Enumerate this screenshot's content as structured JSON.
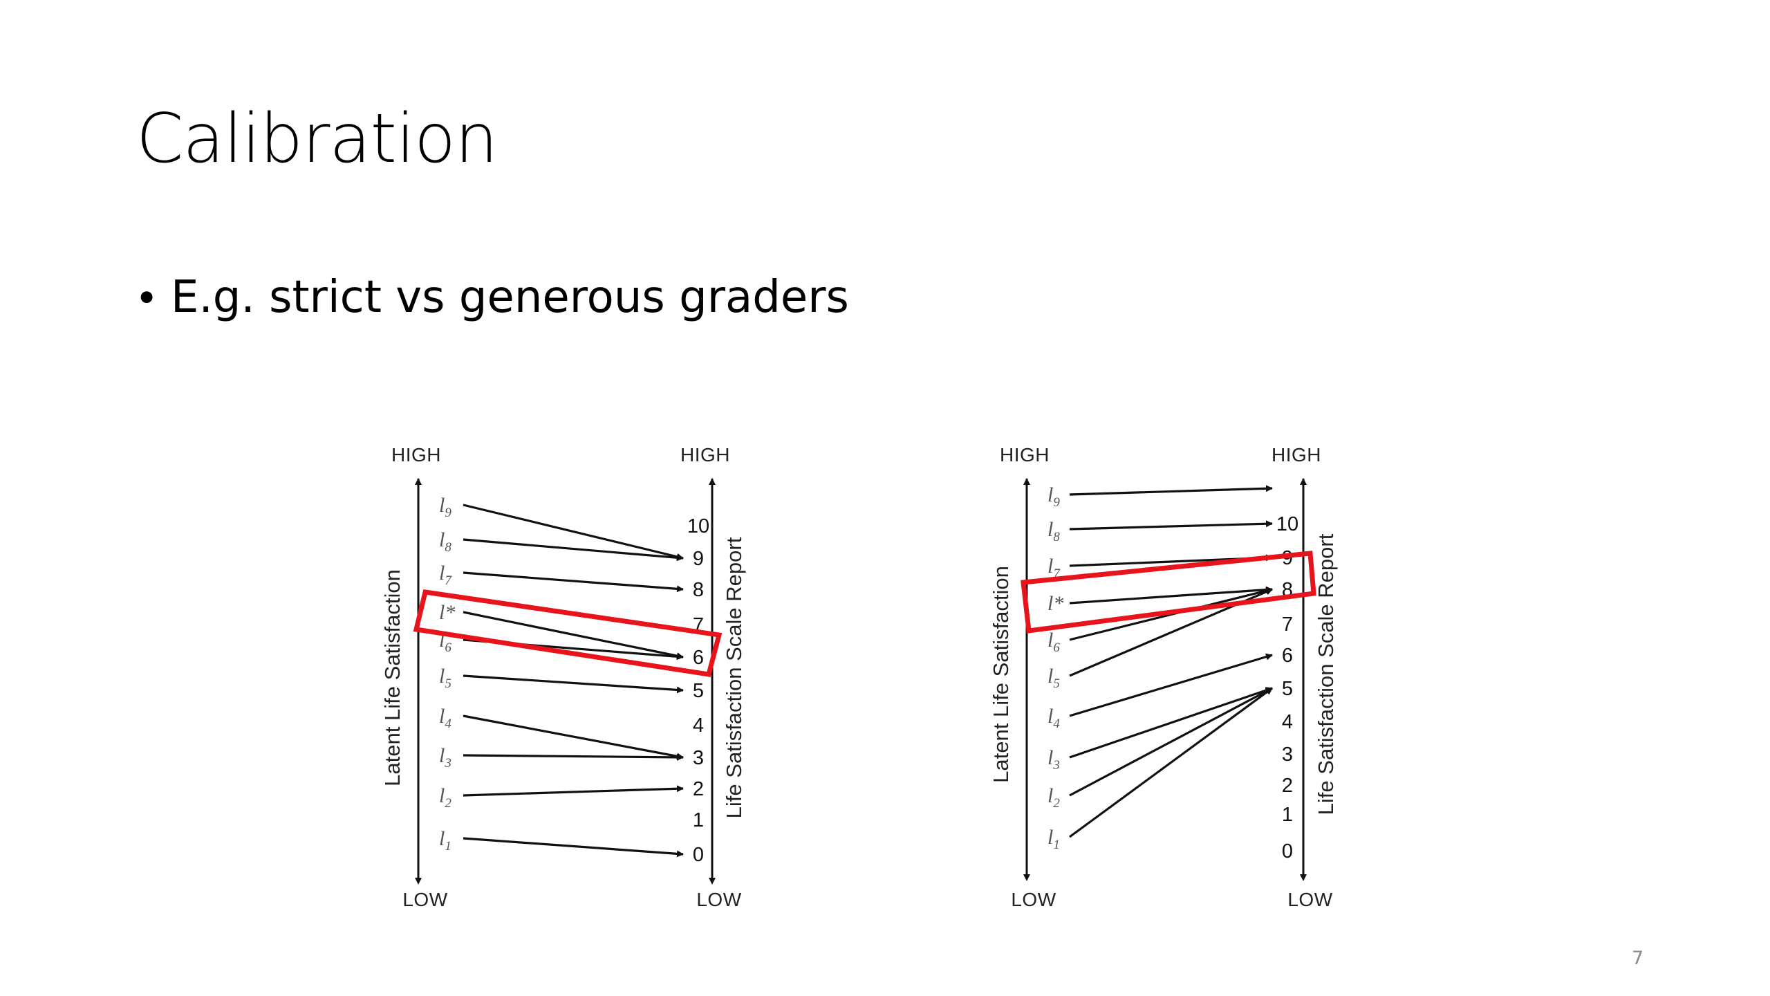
{
  "slide": {
    "title": "Calibration",
    "bullets": [
      "E.g. strict vs generous graders"
    ],
    "page_number": "7"
  },
  "diagrams": [
    {
      "id": "strict",
      "left_axis": {
        "top": "HIGH",
        "bottom": "LOW",
        "label": "Latent Life Satisfaction"
      },
      "right_axis": {
        "top": "HIGH",
        "bottom": "LOW",
        "label": "Life Satisfaction Scale Report"
      },
      "ticks": [
        "0",
        "1",
        "2",
        "3",
        "4",
        "5",
        "6",
        "7",
        "8",
        "9",
        "10"
      ],
      "levels": [
        {
          "base": "l",
          "sub": "1"
        },
        {
          "base": "l",
          "sub": "2"
        },
        {
          "base": "l",
          "sub": "3"
        },
        {
          "base": "l",
          "sub": "4"
        },
        {
          "base": "l",
          "sub": "5"
        },
        {
          "base": "l",
          "sub": "6"
        },
        {
          "base": "l*",
          "sub": ""
        },
        {
          "base": "l",
          "sub": "7"
        },
        {
          "base": "l",
          "sub": "8"
        },
        {
          "base": "l",
          "sub": "9"
        }
      ],
      "mapping": [
        {
          "from": "l1",
          "to": "0"
        },
        {
          "from": "l2",
          "to": "2"
        },
        {
          "from": "l3",
          "to": "3"
        },
        {
          "from": "l4",
          "to": "3"
        },
        {
          "from": "l5",
          "to": "5"
        },
        {
          "from": "l6",
          "to": "6"
        },
        {
          "from": "l*",
          "to": "6"
        },
        {
          "from": "l7",
          "to": "8"
        },
        {
          "from": "l8",
          "to": "9"
        },
        {
          "from": "l9",
          "to": "9"
        }
      ],
      "highlight": {
        "from": "l*",
        "to": "6",
        "color": "#e8141b"
      }
    },
    {
      "id": "generous",
      "left_axis": {
        "top": "HIGH",
        "bottom": "LOW",
        "label": "Latent Life Satisfaction"
      },
      "right_axis": {
        "top": "HIGH",
        "bottom": "LOW",
        "label": "Life Satisfaction Scale Report"
      },
      "ticks": [
        "0",
        "1",
        "2",
        "3",
        "4",
        "5",
        "6",
        "7",
        "8",
        "9",
        "10"
      ],
      "levels": [
        {
          "base": "l",
          "sub": "1"
        },
        {
          "base": "l",
          "sub": "2"
        },
        {
          "base": "l",
          "sub": "3"
        },
        {
          "base": "l",
          "sub": "4"
        },
        {
          "base": "l",
          "sub": "5"
        },
        {
          "base": "l",
          "sub": "6"
        },
        {
          "base": "l*",
          "sub": ""
        },
        {
          "base": "l",
          "sub": "7"
        },
        {
          "base": "l",
          "sub": "8"
        },
        {
          "base": "l",
          "sub": "9"
        }
      ],
      "mapping": [
        {
          "from": "l1",
          "to": "5"
        },
        {
          "from": "l2",
          "to": "5"
        },
        {
          "from": "l3",
          "to": "5"
        },
        {
          "from": "l4",
          "to": "6"
        },
        {
          "from": "l5",
          "to": "8"
        },
        {
          "from": "l6",
          "to": "8"
        },
        {
          "from": "l*",
          "to": "8"
        },
        {
          "from": "l7",
          "to": "9"
        },
        {
          "from": "l8",
          "to": "10"
        },
        {
          "from": "l9",
          "to": "above 10"
        }
      ],
      "highlight": {
        "from": "l*",
        "to": "8",
        "color": "#e8141b"
      }
    }
  ]
}
